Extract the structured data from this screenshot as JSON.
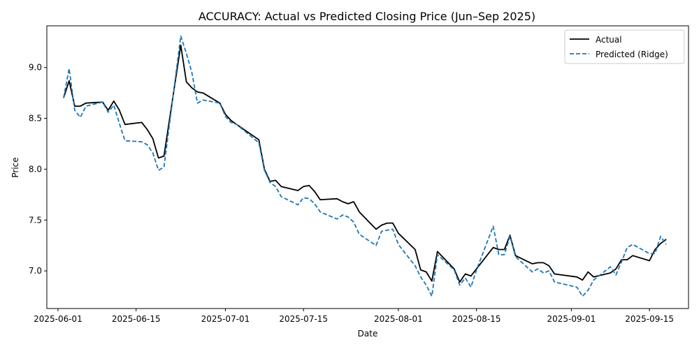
{
  "chart_data": {
    "type": "line",
    "title": "ACCURACY: Actual vs Predicted Closing Price (Jun–Sep 2025)",
    "xlabel": "Date",
    "ylabel": "Price",
    "x_is_date": true,
    "xlim": [
      "2025-05-30",
      "2025-09-22"
    ],
    "ylim": [
      6.63,
      9.41
    ],
    "xticks": [
      "2025-06-01",
      "2025-06-15",
      "2025-07-01",
      "2025-07-15",
      "2025-08-01",
      "2025-08-15",
      "2025-09-01",
      "2025-09-15"
    ],
    "yticks": [
      7.0,
      7.5,
      8.0,
      8.5,
      9.0
    ],
    "ytick_labels": [
      "7.0",
      "7.5",
      "8.0",
      "8.5",
      "9.0"
    ],
    "legend": {
      "position": "top-right"
    },
    "grid": false,
    "series": [
      {
        "name": "Actual",
        "color": "#000000",
        "style": "solid",
        "x": [
          "2025-06-02",
          "2025-06-03",
          "2025-06-04",
          "2025-06-05",
          "2025-06-06",
          "2025-06-09",
          "2025-06-10",
          "2025-06-11",
          "2025-06-12",
          "2025-06-13",
          "2025-06-16",
          "2025-06-17",
          "2025-06-18",
          "2025-06-19",
          "2025-06-20",
          "2025-06-23",
          "2025-06-24",
          "2025-06-25",
          "2025-06-26",
          "2025-06-27",
          "2025-06-30",
          "2025-07-01",
          "2025-07-02",
          "2025-07-03",
          "2025-07-07",
          "2025-07-08",
          "2025-07-09",
          "2025-07-10",
          "2025-07-11",
          "2025-07-14",
          "2025-07-15",
          "2025-07-16",
          "2025-07-17",
          "2025-07-18",
          "2025-07-21",
          "2025-07-22",
          "2025-07-23",
          "2025-07-24",
          "2025-07-25",
          "2025-07-28",
          "2025-07-29",
          "2025-07-30",
          "2025-07-31",
          "2025-08-01",
          "2025-08-04",
          "2025-08-05",
          "2025-08-06",
          "2025-08-07",
          "2025-08-08",
          "2025-08-11",
          "2025-08-12",
          "2025-08-13",
          "2025-08-14",
          "2025-08-15",
          "2025-08-18",
          "2025-08-19",
          "2025-08-20",
          "2025-08-21",
          "2025-08-22",
          "2025-08-25",
          "2025-08-26",
          "2025-08-27",
          "2025-08-28",
          "2025-08-29",
          "2025-09-02",
          "2025-09-03",
          "2025-09-04",
          "2025-09-05",
          "2025-09-08",
          "2025-09-09",
          "2025-09-10",
          "2025-09-11",
          "2025-09-12",
          "2025-09-15",
          "2025-09-16",
          "2025-09-17",
          "2025-09-18"
        ],
        "values": [
          8.7,
          8.87,
          8.62,
          8.62,
          8.65,
          8.66,
          8.58,
          8.67,
          8.58,
          8.44,
          8.46,
          8.39,
          8.3,
          8.11,
          8.13,
          9.22,
          8.86,
          8.8,
          8.76,
          8.75,
          8.65,
          8.54,
          8.48,
          8.44,
          8.29,
          8.0,
          7.88,
          7.89,
          7.83,
          7.79,
          7.83,
          7.84,
          7.78,
          7.7,
          7.71,
          7.68,
          7.66,
          7.68,
          7.58,
          7.41,
          7.45,
          7.47,
          7.47,
          7.37,
          7.21,
          7.01,
          6.99,
          6.9,
          7.19,
          7.02,
          6.89,
          6.97,
          6.95,
          7.02,
          7.23,
          7.21,
          7.21,
          7.35,
          7.15,
          7.07,
          7.08,
          7.08,
          7.05,
          6.97,
          6.94,
          6.91,
          6.99,
          6.94,
          6.98,
          7.02,
          7.11,
          7.11,
          7.15,
          7.1,
          7.21,
          7.27,
          7.31
        ]
      },
      {
        "name": "Predicted (Ridge)",
        "color": "#1f77b4",
        "style": "dashed",
        "x": [
          "2025-06-02",
          "2025-06-03",
          "2025-06-04",
          "2025-06-05",
          "2025-06-06",
          "2025-06-09",
          "2025-06-10",
          "2025-06-11",
          "2025-06-12",
          "2025-06-13",
          "2025-06-16",
          "2025-06-17",
          "2025-06-18",
          "2025-06-19",
          "2025-06-20",
          "2025-06-23",
          "2025-06-24",
          "2025-06-25",
          "2025-06-26",
          "2025-06-27",
          "2025-06-30",
          "2025-07-01",
          "2025-07-02",
          "2025-07-03",
          "2025-07-07",
          "2025-07-08",
          "2025-07-09",
          "2025-07-10",
          "2025-07-11",
          "2025-07-14",
          "2025-07-15",
          "2025-07-16",
          "2025-07-17",
          "2025-07-18",
          "2025-07-21",
          "2025-07-22",
          "2025-07-23",
          "2025-07-24",
          "2025-07-25",
          "2025-07-28",
          "2025-07-29",
          "2025-07-30",
          "2025-07-31",
          "2025-08-01",
          "2025-08-04",
          "2025-08-05",
          "2025-08-06",
          "2025-08-07",
          "2025-08-08",
          "2025-08-11",
          "2025-08-12",
          "2025-08-13",
          "2025-08-14",
          "2025-08-15",
          "2025-08-18",
          "2025-08-19",
          "2025-08-20",
          "2025-08-21",
          "2025-08-22",
          "2025-08-25",
          "2025-08-26",
          "2025-08-27",
          "2025-08-28",
          "2025-08-29",
          "2025-09-02",
          "2025-09-03",
          "2025-09-04",
          "2025-09-05",
          "2025-09-08",
          "2025-09-09",
          "2025-09-10",
          "2025-09-11",
          "2025-09-12",
          "2025-09-15",
          "2025-09-16",
          "2025-09-17",
          "2025-09-18"
        ],
        "values": [
          8.7,
          8.99,
          8.58,
          8.51,
          8.62,
          8.66,
          8.56,
          8.63,
          8.45,
          8.28,
          8.27,
          8.24,
          8.16,
          7.99,
          8.02,
          9.31,
          9.14,
          8.95,
          8.65,
          8.68,
          8.65,
          8.52,
          8.46,
          8.44,
          8.26,
          7.99,
          7.87,
          7.83,
          7.73,
          7.65,
          7.72,
          7.71,
          7.66,
          7.58,
          7.51,
          7.55,
          7.53,
          7.48,
          7.36,
          7.25,
          7.39,
          7.4,
          7.41,
          7.26,
          7.05,
          6.94,
          6.86,
          6.75,
          7.16,
          7.01,
          6.86,
          6.93,
          6.84,
          7.01,
          7.44,
          7.16,
          7.16,
          7.34,
          7.14,
          6.99,
          7.02,
          6.98,
          7.0,
          6.89,
          6.84,
          6.75,
          6.81,
          6.91,
          7.04,
          6.96,
          7.09,
          7.23,
          7.26,
          7.17,
          7.17,
          7.34,
          7.26
        ]
      }
    ]
  }
}
